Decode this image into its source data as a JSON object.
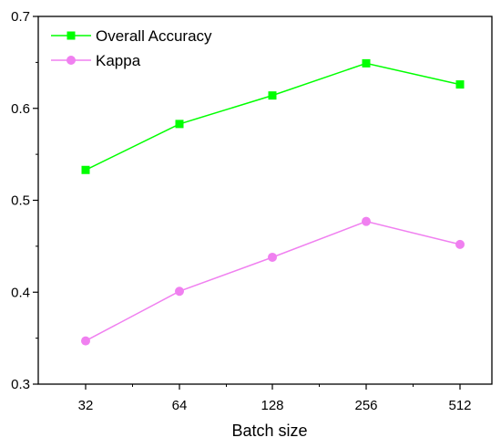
{
  "chart_data": {
    "type": "line",
    "title": "",
    "xlabel": "Batch size",
    "ylabel": "",
    "categories": [
      "32",
      "64",
      "128",
      "256",
      "512"
    ],
    "ylim": [
      0.3,
      0.7
    ],
    "yticks": [
      "0.3",
      "0.4",
      "0.5",
      "0.6",
      "0.7"
    ],
    "grid": false,
    "legend_position": "top-left",
    "series": [
      {
        "name": "Overall Accuracy",
        "values": [
          0.533,
          0.583,
          0.614,
          0.649,
          0.626
        ],
        "color": "#00ff00",
        "marker": "square"
      },
      {
        "name": "Kappa",
        "values": [
          0.347,
          0.401,
          0.438,
          0.477,
          0.452
        ],
        "color": "#f080f0",
        "marker": "circle"
      }
    ]
  }
}
